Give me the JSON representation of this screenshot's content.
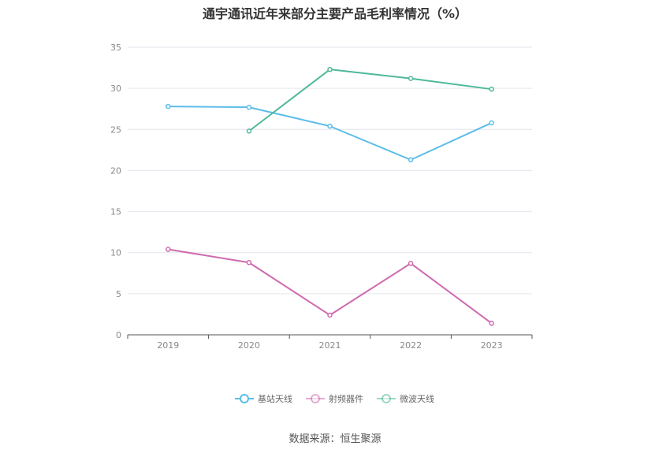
{
  "chart_data": {
    "type": "line",
    "title": "通宇通讯近年来部分主要产品毛利率情况（%）",
    "categories": [
      "2019",
      "2020",
      "2021",
      "2022",
      "2023"
    ],
    "ylim": [
      0,
      35
    ],
    "yticks": [
      0,
      5,
      10,
      15,
      20,
      25,
      30,
      35
    ],
    "grid": true,
    "legend": "bottom-center",
    "series": [
      {
        "name": "基站天线",
        "color": "#5bbde8",
        "values": [
          27.8,
          27.7,
          25.4,
          21.3,
          25.8
        ]
      },
      {
        "name": "射频器件",
        "color": "#cf6aae",
        "values": [
          10.4,
          8.8,
          2.4,
          8.7,
          1.4
        ]
      },
      {
        "name": "微波天线",
        "color": "#4fb89a",
        "values": [
          null,
          24.8,
          32.3,
          31.2,
          29.9
        ]
      }
    ]
  },
  "source": "数据来源：恒生聚源"
}
